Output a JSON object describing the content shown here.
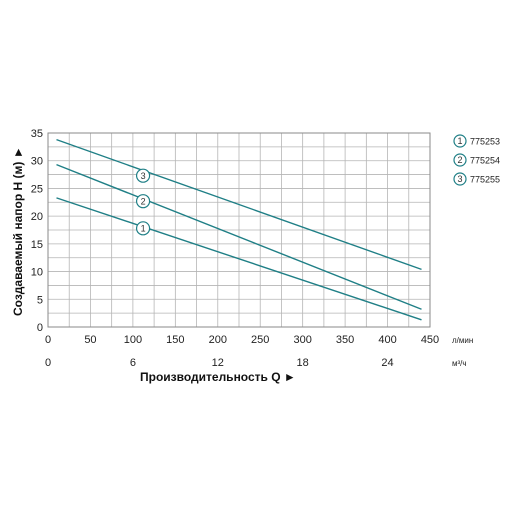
{
  "chart_data": {
    "type": "line",
    "x_axis_primary": {
      "unit": "л/мин",
      "range": [
        0,
        450
      ],
      "ticks": [
        "0",
        "50",
        "100",
        "150",
        "200",
        "250",
        "300",
        "350",
        "400",
        "450"
      ]
    },
    "x_axis_secondary": {
      "unit": "м³/ч",
      "ticks": [
        "0",
        "6",
        "12",
        "18",
        "24"
      ],
      "tick_values_lpm": [
        0,
        100,
        200,
        300,
        400
      ]
    },
    "y_axis": {
      "label": "Создаваемый напор Н (м) ►",
      "range": [
        0,
        35
      ],
      "ticks": [
        "0",
        "5",
        "10",
        "15",
        "20",
        "25",
        "30",
        "35"
      ]
    },
    "xlabel": "Производительность Q ►",
    "grid": true,
    "legend_position": "right",
    "series_color": "#1f7f86",
    "series": [
      {
        "name": "775253",
        "marker": "1",
        "x": [
          10,
          440
        ],
        "y": [
          23.3,
          1.3
        ],
        "marker_at": [
          112,
          17.8
        ]
      },
      {
        "name": "775254",
        "marker": "2",
        "x": [
          10,
          440
        ],
        "y": [
          29.3,
          3.2
        ],
        "marker_at": [
          112,
          22.7
        ]
      },
      {
        "name": "775255",
        "marker": "3",
        "x": [
          10,
          440
        ],
        "y": [
          33.8,
          10.4
        ],
        "marker_at": [
          112,
          27.3
        ]
      }
    ]
  }
}
